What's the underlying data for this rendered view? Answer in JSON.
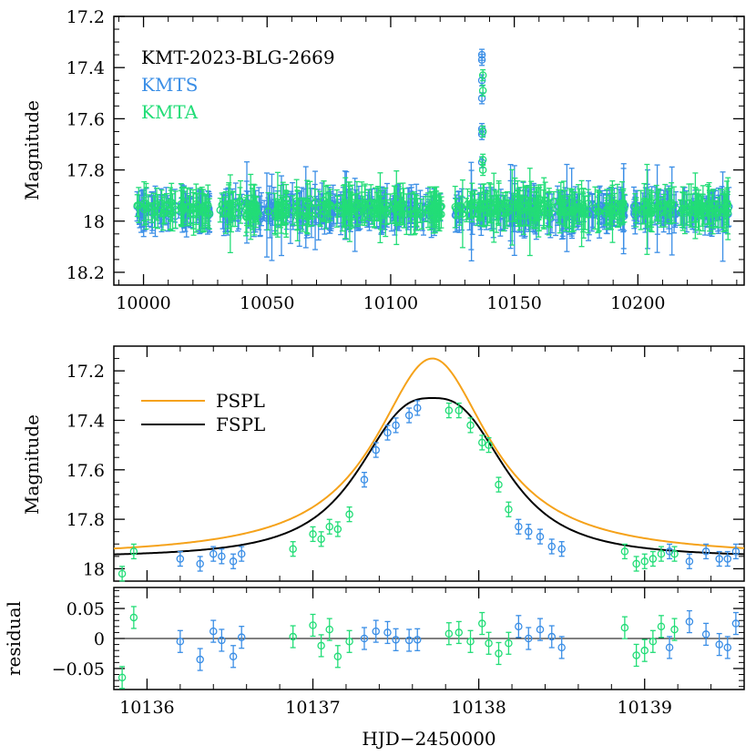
{
  "colors": {
    "kmts": "#3a8ee6",
    "kmta": "#22dd77",
    "pspl": "#f5a21a",
    "fspl": "#000000"
  },
  "chart_data": [
    {
      "type": "scatter",
      "id": "top",
      "ylabel": "Magnitude",
      "xlim": [
        9988,
        10243
      ],
      "ylim": [
        17.2,
        18.25
      ],
      "ytick_labels": [
        "17.2",
        "17.4",
        "17.6",
        "17.8",
        "18",
        "18.2"
      ],
      "xtick_labels": [
        "10000",
        "10050",
        "10100",
        "10150",
        "10200"
      ],
      "legend": {
        "title": "KMT-2023-BLG-2669",
        "entries": [
          "KMTS",
          "KMTA"
        ]
      },
      "series": [
        {
          "name": "KMTS",
          "baseline_mag": 17.96,
          "scatter": 0.03,
          "peak_points": [
            [
              10136.9,
              17.35
            ],
            [
              10136.9,
              17.37
            ],
            [
              10136.9,
              17.45
            ],
            [
              10136.9,
              17.52
            ],
            [
              10136.9,
              17.64
            ],
            [
              10136.9,
              17.66
            ],
            [
              10136.9,
              17.77
            ]
          ]
        },
        {
          "name": "KMTA",
          "baseline_mag": 17.95,
          "scatter": 0.03,
          "peak_points": [
            [
              10137.3,
              17.43
            ],
            [
              10137.3,
              17.49
            ],
            [
              10137.3,
              17.65
            ],
            [
              10137.3,
              17.76
            ],
            [
              10137.3,
              17.8
            ]
          ]
        }
      ]
    },
    {
      "type": "line",
      "id": "main",
      "ylabel": "Magnitude",
      "xlim": [
        10135.8,
        10139.6
      ],
      "ylim": [
        17.1,
        18.05
      ],
      "ytick_labels": [
        "17.2",
        "17.4",
        "17.6",
        "17.8",
        "18"
      ],
      "model": {
        "t0": 10137.72,
        "base": 17.955
      },
      "series": [
        {
          "name": "PSPL",
          "kind": "line",
          "peak_mag": 17.15
        },
        {
          "name": "FSPL",
          "kind": "line",
          "peak_mag": 17.31
        },
        {
          "name": "KMTS",
          "kind": "points",
          "points": [
            [
              10136.2,
              17.96
            ],
            [
              10136.32,
              17.98
            ],
            [
              10136.4,
              17.94
            ],
            [
              10136.45,
              17.95
            ],
            [
              10136.52,
              17.97
            ],
            [
              10136.57,
              17.94
            ],
            [
              10137.31,
              17.64
            ],
            [
              10137.38,
              17.52
            ],
            [
              10137.45,
              17.45
            ],
            [
              10137.5,
              17.42
            ],
            [
              10137.58,
              17.38
            ],
            [
              10137.63,
              17.35
            ],
            [
              10138.24,
              17.83
            ],
            [
              10138.3,
              17.85
            ],
            [
              10138.37,
              17.87
            ],
            [
              10138.44,
              17.91
            ],
            [
              10138.5,
              17.92
            ],
            [
              10139.15,
              17.93
            ],
            [
              10139.27,
              17.97
            ],
            [
              10139.37,
              17.93
            ],
            [
              10139.45,
              17.96
            ],
            [
              10139.5,
              17.96
            ],
            [
              10139.55,
              17.93
            ]
          ]
        },
        {
          "name": "KMTA",
          "kind": "points",
          "points": [
            [
              10135.85,
              18.02
            ],
            [
              10135.92,
              17.93
            ],
            [
              10136.88,
              17.92
            ],
            [
              10137.0,
              17.86
            ],
            [
              10137.05,
              17.88
            ],
            [
              10137.1,
              17.83
            ],
            [
              10137.15,
              17.84
            ],
            [
              10137.22,
              17.78
            ],
            [
              10137.82,
              17.36
            ],
            [
              10137.88,
              17.36
            ],
            [
              10137.95,
              17.42
            ],
            [
              10138.02,
              17.49
            ],
            [
              10138.06,
              17.5
            ],
            [
              10138.12,
              17.66
            ],
            [
              10138.18,
              17.76
            ],
            [
              10138.88,
              17.93
            ],
            [
              10138.95,
              17.98
            ],
            [
              10139.0,
              17.97
            ],
            [
              10139.05,
              17.96
            ],
            [
              10139.1,
              17.94
            ],
            [
              10139.18,
              17.94
            ]
          ]
        }
      ]
    },
    {
      "type": "scatter",
      "id": "residual",
      "ylabel": "residual",
      "xlabel": "HJD−2450000",
      "xlim": [
        10135.8,
        10139.6
      ],
      "ylim": [
        -0.085,
        0.085
      ],
      "ytick_labels": [
        "0.05",
        "0",
        "−0.05"
      ],
      "xtick_labels": [
        "10136",
        "10137",
        "10138",
        "10139"
      ],
      "series": [
        {
          "name": "KMTS",
          "points": [
            [
              10136.2,
              -0.005
            ],
            [
              10136.32,
              -0.035
            ],
            [
              10136.4,
              0.012
            ],
            [
              10136.45,
              -0.003
            ],
            [
              10136.52,
              -0.03
            ],
            [
              10136.57,
              0.002
            ],
            [
              10137.31,
              0.0
            ],
            [
              10137.38,
              0.012
            ],
            [
              10137.45,
              0.01
            ],
            [
              10137.5,
              -0.002
            ],
            [
              10137.58,
              -0.003
            ],
            [
              10137.63,
              -0.002
            ],
            [
              10138.24,
              0.02
            ],
            [
              10138.3,
              0.0
            ],
            [
              10138.37,
              0.015
            ],
            [
              10138.44,
              0.003
            ],
            [
              10138.5,
              -0.015
            ],
            [
              10139.15,
              -0.015
            ],
            [
              10139.27,
              0.028
            ],
            [
              10139.37,
              0.007
            ],
            [
              10139.45,
              -0.01
            ],
            [
              10139.5,
              -0.015
            ],
            [
              10139.55,
              0.025
            ]
          ]
        },
        {
          "name": "KMTA",
          "points": [
            [
              10135.85,
              -0.065
            ],
            [
              10135.92,
              0.035
            ],
            [
              10136.88,
              0.003
            ],
            [
              10137.0,
              0.022
            ],
            [
              10137.05,
              -0.012
            ],
            [
              10137.1,
              0.015
            ],
            [
              10137.15,
              -0.03
            ],
            [
              10137.22,
              -0.005
            ],
            [
              10137.82,
              0.008
            ],
            [
              10137.88,
              0.01
            ],
            [
              10137.95,
              -0.005
            ],
            [
              10138.02,
              0.025
            ],
            [
              10138.06,
              -0.008
            ],
            [
              10138.12,
              -0.025
            ],
            [
              10138.18,
              -0.008
            ],
            [
              10138.88,
              0.018
            ],
            [
              10138.95,
              -0.028
            ],
            [
              10139.0,
              -0.02
            ],
            [
              10139.05,
              -0.005
            ],
            [
              10139.1,
              0.02
            ],
            [
              10139.18,
              0.015
            ]
          ]
        }
      ]
    }
  ]
}
